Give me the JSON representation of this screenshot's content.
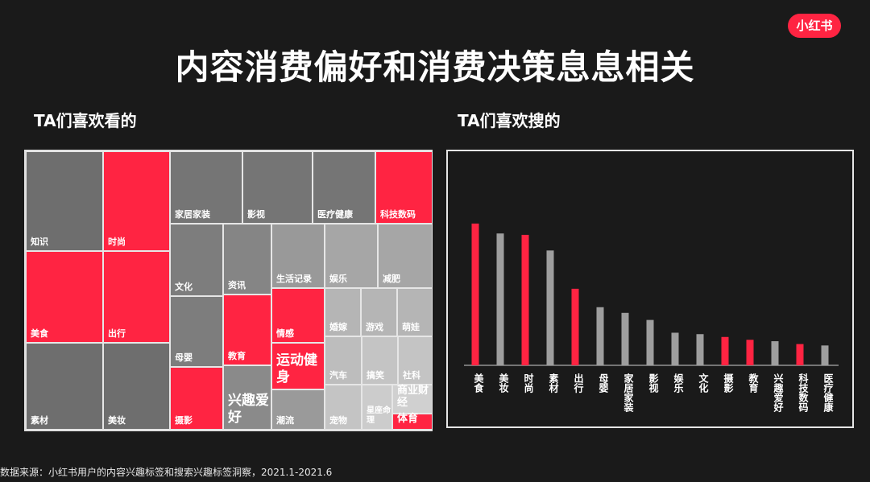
{
  "brand": {
    "logo_text": "小红书",
    "accent": "#ff2442",
    "gray": "#8a8a8a"
  },
  "title": "内容消费偏好和消费决策息息相关",
  "left_panel": {
    "subtitle": "TA们喜欢看的"
  },
  "right_panel": {
    "subtitle": "TA们喜欢搜的"
  },
  "footer": "数据来源：小红书用户的内容兴趣标签和搜索兴趣标签洞察，2021.1-2021.6",
  "chart_data": [
    {
      "type": "heatmap",
      "subtitle": "TA们喜欢看的",
      "tiles": [
        {
          "label": "知识",
          "color": "#6e6e6e"
        },
        {
          "label": "美食",
          "color": "#ff2442"
        },
        {
          "label": "素材",
          "color": "#6e6e6e"
        },
        {
          "label": "时尚",
          "color": "#ff2442"
        },
        {
          "label": "出行",
          "color": "#ff2442"
        },
        {
          "label": "美妆",
          "color": "#6e6e6e"
        },
        {
          "label": "家居家装",
          "color": "#757575"
        },
        {
          "label": "影视",
          "color": "#757575"
        },
        {
          "label": "医疗健康",
          "color": "#757575"
        },
        {
          "label": "科技数码",
          "color": "#ff2442"
        },
        {
          "label": "文化",
          "color": "#7d7d7d"
        },
        {
          "label": "母婴",
          "color": "#7d7d7d"
        },
        {
          "label": "摄影",
          "color": "#ff2442"
        },
        {
          "label": "资讯",
          "color": "#858585"
        },
        {
          "label": "教育",
          "color": "#ff2442"
        },
        {
          "label": "兴趣爱好",
          "color": "#8a8a8a"
        },
        {
          "label": "生活记录",
          "color": "#999999"
        },
        {
          "label": "情感",
          "color": "#ff2442"
        },
        {
          "label": "运动健身",
          "color": "#ff2442"
        },
        {
          "label": "潮流",
          "color": "#9a9a9a"
        },
        {
          "label": "娱乐",
          "color": "#a6a6a6"
        },
        {
          "label": "减肥",
          "color": "#a6a6a6"
        },
        {
          "label": "婚嫁",
          "color": "#b5b5b5"
        },
        {
          "label": "游戏",
          "color": "#b5b5b5"
        },
        {
          "label": "萌娃",
          "color": "#b5b5b5"
        },
        {
          "label": "汽车",
          "color": "#bdbdbd"
        },
        {
          "label": "搞笑",
          "color": "#c4c4c4"
        },
        {
          "label": "社科",
          "color": "#c4c4c4"
        },
        {
          "label": "宠物",
          "color": "#c4c4c4"
        },
        {
          "label": "星座命理",
          "color": "#cccccc"
        },
        {
          "label": "商业财经",
          "color": "#d0d0d0"
        },
        {
          "label": "体育",
          "color": "#ff2442"
        }
      ]
    },
    {
      "type": "bar",
      "subtitle": "TA们喜欢搜的",
      "categories": [
        "美食",
        "美妆",
        "时尚",
        "素材",
        "出行",
        "母婴",
        "家居家装",
        "影视",
        "娱乐",
        "文化",
        "摄影",
        "教育",
        "兴趣爱好",
        "科技数码",
        "医疗健康"
      ],
      "values": [
        100,
        93,
        92,
        81,
        54,
        41,
        37,
        32,
        23,
        22,
        20,
        18,
        17,
        15,
        14
      ],
      "highlight": [
        true,
        false,
        true,
        false,
        true,
        false,
        false,
        false,
        false,
        false,
        true,
        true,
        false,
        true,
        false
      ],
      "ylim": [
        0,
        105
      ],
      "grid": false
    }
  ]
}
